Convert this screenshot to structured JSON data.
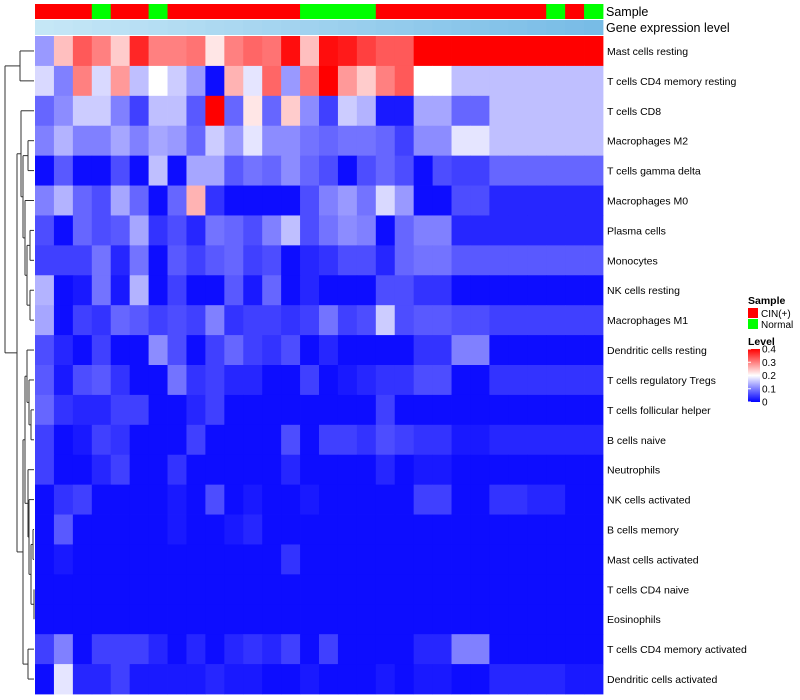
{
  "chart_data": {
    "type": "heatmap",
    "title": "",
    "annotation_tracks": [
      {
        "name": "Sample",
        "values": [
          "CIN(+)",
          "CIN(+)",
          "CIN(+)",
          "Normal",
          "CIN(+)",
          "CIN(+)",
          "Normal",
          "CIN(+)",
          "CIN(+)",
          "CIN(+)",
          "CIN(+)",
          "CIN(+)",
          "CIN(+)",
          "CIN(+)",
          "Normal",
          "Normal",
          "Normal",
          "Normal",
          "CIN(+)",
          "CIN(+)",
          "CIN(+)",
          "CIN(+)",
          "CIN(+)",
          "CIN(+)",
          "CIN(+)",
          "CIN(+)",
          "CIN(+)",
          "Normal",
          "CIN(+)",
          "Normal"
        ]
      },
      {
        "name": "Gene expression level",
        "values": [
          0.02,
          0.04,
          0.06,
          0.08,
          0.1,
          0.12,
          0.14,
          0.16,
          0.18,
          0.2,
          0.22,
          0.24,
          0.26,
          0.28,
          0.3,
          0.32,
          0.34,
          0.36,
          0.38,
          0.4,
          0.42,
          0.44,
          0.46,
          0.48,
          0.5,
          0.52,
          0.54,
          0.56,
          0.58,
          0.6
        ]
      }
    ],
    "sample_legend": {
      "title": "Sample",
      "entries": [
        {
          "label": "CIN(+)",
          "color": "#ff0000"
        },
        {
          "label": "Normal",
          "color": "#00ff00"
        }
      ]
    },
    "level_legend": {
      "title": "Level",
      "min": 0,
      "max": 0.4,
      "ticks": [
        0,
        0.1,
        0.2,
        0.3,
        0.4
      ],
      "tick_labels": [
        "0",
        "0.1",
        "0.2",
        "0.3",
        "0.4"
      ],
      "low_color": "#0000ff",
      "mid_color": "#ffffff",
      "high_color": "#ff0000",
      "mid_value": 0.2
    },
    "rows": [
      {
        "label": "Mast cells resting",
        "values": [
          0.12,
          0.25,
          0.33,
          0.3,
          0.24,
          0.37,
          0.3,
          0.3,
          0.31,
          0.22,
          0.3,
          0.32,
          0.31,
          0.39,
          0.25,
          0.39,
          0.38,
          0.35,
          0.33,
          0.33,
          0.4,
          0.4,
          0.4,
          0.4,
          0.4,
          0.4,
          0.4,
          0.4,
          0.4,
          0.4
        ]
      },
      {
        "label": "T cells CD4 memory resting",
        "values": [
          0.17,
          0.1,
          0.3,
          0.17,
          0.28,
          0.15,
          0.2,
          0.16,
          0.12,
          0.01,
          0.26,
          0.18,
          0.32,
          0.12,
          0.31,
          0.4,
          0.28,
          0.24,
          0.3,
          0.33,
          0.2,
          0.2,
          0.15,
          0.15,
          0.15,
          0.15,
          0.15,
          0.15,
          0.15,
          0.15
        ]
      },
      {
        "label": "T cells CD8",
        "values": [
          0.08,
          0.11,
          0.16,
          0.16,
          0.1,
          0.05,
          0.15,
          0.15,
          0.07,
          0.4,
          0.08,
          0.22,
          0.08,
          0.24,
          0.11,
          0.05,
          0.16,
          0.14,
          0.02,
          0.02,
          0.13,
          0.13,
          0.08,
          0.08,
          0.15,
          0.15,
          0.15,
          0.15,
          0.15,
          0.15
        ]
      },
      {
        "label": "Macrophages M2",
        "values": [
          0.1,
          0.14,
          0.1,
          0.1,
          0.13,
          0.1,
          0.13,
          0.12,
          0.08,
          0.16,
          0.12,
          0.18,
          0.11,
          0.11,
          0.09,
          0.08,
          0.09,
          0.09,
          0.08,
          0.05,
          0.11,
          0.11,
          0.18,
          0.18,
          0.15,
          0.15,
          0.15,
          0.15,
          0.15,
          0.15
        ]
      },
      {
        "label": "T cells gamma delta",
        "values": [
          0.01,
          0.07,
          0.01,
          0.01,
          0.06,
          0.01,
          0.15,
          0.01,
          0.13,
          0.13,
          0.07,
          0.09,
          0.08,
          0.11,
          0.08,
          0.06,
          0.01,
          0.06,
          0.08,
          0.06,
          0.01,
          0.06,
          0.05,
          0.05,
          0.08,
          0.08,
          0.08,
          0.08,
          0.08,
          0.08
        ]
      },
      {
        "label": "Macrophages M0",
        "values": [
          0.1,
          0.14,
          0.08,
          0.06,
          0.13,
          0.08,
          0.01,
          0.08,
          0.26,
          0.04,
          0.01,
          0.01,
          0.01,
          0.01,
          0.06,
          0.1,
          0.12,
          0.09,
          0.17,
          0.12,
          0.01,
          0.01,
          0.06,
          0.06,
          0.03,
          0.03,
          0.03,
          0.03,
          0.03,
          0.03
        ]
      },
      {
        "label": "Plasma cells",
        "values": [
          0.06,
          0.01,
          0.08,
          0.06,
          0.07,
          0.13,
          0.04,
          0.06,
          0.03,
          0.09,
          0.08,
          0.06,
          0.1,
          0.15,
          0.06,
          0.09,
          0.11,
          0.1,
          0.01,
          0.08,
          0.1,
          0.1,
          0.03,
          0.03,
          0.03,
          0.03,
          0.03,
          0.03,
          0.03,
          0.03
        ]
      },
      {
        "label": "Monocytes",
        "values": [
          0.05,
          0.05,
          0.05,
          0.09,
          0.03,
          0.09,
          0.01,
          0.07,
          0.05,
          0.07,
          0.08,
          0.05,
          0.06,
          0.01,
          0.03,
          0.04,
          0.06,
          0.06,
          0.03,
          0.08,
          0.09,
          0.09,
          0.07,
          0.07,
          0.07,
          0.07,
          0.07,
          0.07,
          0.07,
          0.07
        ]
      },
      {
        "label": "NK cells resting",
        "values": [
          0.14,
          0.01,
          0.02,
          0.09,
          0.02,
          0.14,
          0.01,
          0.05,
          0.01,
          0.01,
          0.07,
          0.02,
          0.08,
          0.01,
          0.03,
          0.01,
          0.01,
          0.01,
          0.06,
          0.06,
          0.04,
          0.04,
          0.01,
          0.01,
          0.01,
          0.01,
          0.01,
          0.01,
          0.01,
          0.01
        ]
      },
      {
        "label": "Macrophages M1",
        "values": [
          0.13,
          0.01,
          0.05,
          0.04,
          0.08,
          0.07,
          0.05,
          0.06,
          0.05,
          0.1,
          0.04,
          0.05,
          0.05,
          0.04,
          0.05,
          0.09,
          0.05,
          0.06,
          0.16,
          0.06,
          0.07,
          0.07,
          0.06,
          0.06,
          0.05,
          0.05,
          0.05,
          0.05,
          0.05,
          0.05
        ]
      },
      {
        "label": "Dendritic cells resting",
        "values": [
          0.06,
          0.03,
          0.01,
          0.05,
          0.01,
          0.01,
          0.11,
          0.06,
          0.01,
          0.05,
          0.08,
          0.05,
          0.04,
          0.06,
          0.01,
          0.03,
          0.01,
          0.01,
          0.01,
          0.01,
          0.04,
          0.04,
          0.1,
          0.1,
          0.01,
          0.01,
          0.01,
          0.01,
          0.01,
          0.01
        ]
      },
      {
        "label": "T cells regulatory  Tregs",
        "values": [
          0.07,
          0.02,
          0.06,
          0.07,
          0.04,
          0.01,
          0.01,
          0.09,
          0.04,
          0.05,
          0.03,
          0.03,
          0.01,
          0.01,
          0.05,
          0.01,
          0.02,
          0.03,
          0.04,
          0.04,
          0.06,
          0.06,
          0.01,
          0.01,
          0.04,
          0.04,
          0.04,
          0.04,
          0.04,
          0.04
        ]
      },
      {
        "label": "T cells follicular helper",
        "values": [
          0.08,
          0.04,
          0.03,
          0.03,
          0.05,
          0.05,
          0.01,
          0.01,
          0.03,
          0.05,
          0.01,
          0.01,
          0.01,
          0.01,
          0.01,
          0.01,
          0.01,
          0.01,
          0.05,
          0.01,
          0.01,
          0.01,
          0.01,
          0.01,
          0.01,
          0.01,
          0.01,
          0.01,
          0.01,
          0.01
        ]
      },
      {
        "label": "B cells naive",
        "values": [
          0.05,
          0.01,
          0.02,
          0.05,
          0.04,
          0.01,
          0.01,
          0.01,
          0.05,
          0.01,
          0.01,
          0.01,
          0.01,
          0.06,
          0.01,
          0.05,
          0.05,
          0.04,
          0.06,
          0.05,
          0.04,
          0.04,
          0.02,
          0.02,
          0.03,
          0.03,
          0.03,
          0.03,
          0.03,
          0.03
        ]
      },
      {
        "label": "Neutrophils",
        "values": [
          0.05,
          0.01,
          0.01,
          0.03,
          0.05,
          0.01,
          0.01,
          0.04,
          0.01,
          0.01,
          0.01,
          0.01,
          0.01,
          0.03,
          0.01,
          0.01,
          0.01,
          0.01,
          0.03,
          0.01,
          0.02,
          0.02,
          0.01,
          0.01,
          0.01,
          0.01,
          0.01,
          0.01,
          0.01,
          0.01
        ]
      },
      {
        "label": "NK cells activated",
        "values": [
          0.01,
          0.04,
          0.05,
          0.01,
          0.01,
          0.01,
          0.01,
          0.02,
          0.01,
          0.06,
          0.01,
          0.02,
          0.01,
          0.01,
          0.02,
          0.01,
          0.01,
          0.01,
          0.01,
          0.01,
          0.05,
          0.05,
          0.01,
          0.01,
          0.04,
          0.04,
          0.03,
          0.03,
          0.01,
          0.01
        ]
      },
      {
        "label": "B cells memory",
        "values": [
          0.01,
          0.07,
          0.01,
          0.01,
          0.01,
          0.01,
          0.01,
          0.02,
          0.01,
          0.01,
          0.02,
          0.03,
          0.01,
          0.01,
          0.01,
          0.01,
          0.01,
          0.01,
          0.01,
          0.01,
          0.01,
          0.01,
          0.01,
          0.01,
          0.01,
          0.01,
          0.01,
          0.01,
          0.01,
          0.01
        ]
      },
      {
        "label": "Mast cells activated",
        "values": [
          0.01,
          0.02,
          0.01,
          0.01,
          0.01,
          0.01,
          0.01,
          0.01,
          0.01,
          0.01,
          0.01,
          0.01,
          0.01,
          0.04,
          0.01,
          0.01,
          0.01,
          0.01,
          0.01,
          0.01,
          0.01,
          0.01,
          0.01,
          0.01,
          0.01,
          0.01,
          0.01,
          0.01,
          0.01,
          0.01
        ]
      },
      {
        "label": "T cells CD4 naive",
        "values": [
          0.01,
          0.01,
          0.01,
          0.01,
          0.01,
          0.01,
          0.01,
          0.01,
          0.01,
          0.01,
          0.01,
          0.01,
          0.01,
          0.01,
          0.01,
          0.01,
          0.01,
          0.01,
          0.01,
          0.01,
          0.01,
          0.01,
          0.01,
          0.01,
          0.01,
          0.01,
          0.01,
          0.01,
          0.01,
          0.01
        ]
      },
      {
        "label": "Eosinophils",
        "values": [
          0.01,
          0.01,
          0.01,
          0.01,
          0.01,
          0.01,
          0.01,
          0.01,
          0.01,
          0.01,
          0.01,
          0.01,
          0.01,
          0.01,
          0.01,
          0.01,
          0.01,
          0.01,
          0.01,
          0.01,
          0.01,
          0.01,
          0.01,
          0.01,
          0.01,
          0.01,
          0.01,
          0.01,
          0.01,
          0.01
        ]
      },
      {
        "label": "T cells CD4 memory activated",
        "values": [
          0.05,
          0.1,
          0.01,
          0.05,
          0.05,
          0.05,
          0.03,
          0.01,
          0.03,
          0.01,
          0.03,
          0.04,
          0.03,
          0.05,
          0.01,
          0.05,
          0.01,
          0.01,
          0.01,
          0.01,
          0.03,
          0.03,
          0.1,
          0.1,
          0.01,
          0.01,
          0.01,
          0.01,
          0.01,
          0.01
        ]
      },
      {
        "label": "Dendritic cells activated",
        "values": [
          0.01,
          0.18,
          0.03,
          0.03,
          0.05,
          0.02,
          0.02,
          0.02,
          0.02,
          0.03,
          0.02,
          0.02,
          0.01,
          0.01,
          0.02,
          0.01,
          0.01,
          0.01,
          0.02,
          0.01,
          0.02,
          0.02,
          0.01,
          0.01,
          0.03,
          0.03,
          0.03,
          0.03,
          0.02,
          0.02
        ]
      }
    ]
  }
}
